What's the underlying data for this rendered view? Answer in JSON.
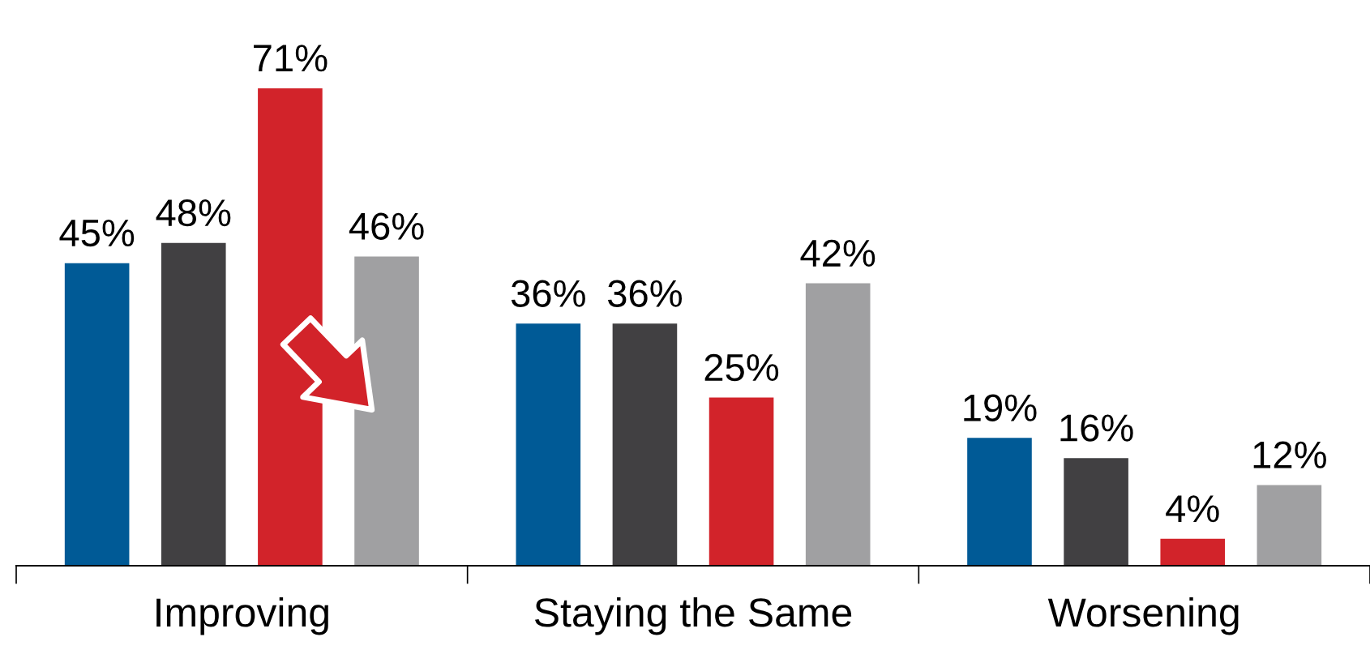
{
  "chart_data": {
    "type": "bar",
    "categories": [
      "Improving",
      "Staying the Same",
      "Worsening"
    ],
    "series": [
      {
        "color": "#005a96",
        "values": [
          45,
          36,
          19
        ],
        "value_labels": [
          "45%",
          "36%",
          "19%"
        ]
      },
      {
        "color": "#414042",
        "values": [
          48,
          36,
          16
        ],
        "value_labels": [
          "48%",
          "36%",
          "16%"
        ]
      },
      {
        "color": "#d2232a",
        "values": [
          71,
          25,
          4
        ],
        "value_labels": [
          "71%",
          "25%",
          "4%"
        ]
      },
      {
        "color": "#a0a0a2",
        "values": [
          46,
          42,
          12
        ],
        "value_labels": [
          "46%",
          "42%",
          "12%"
        ]
      }
    ],
    "grid": false,
    "legend": false
  }
}
